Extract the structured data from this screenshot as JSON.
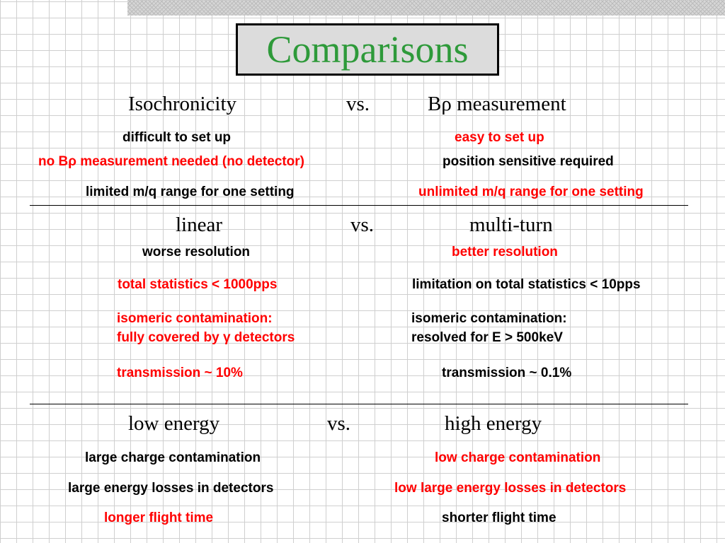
{
  "title": "Comparisons",
  "sections": [
    {
      "left_heading": "Isochronicity",
      "vs": "vs.",
      "right_heading": "Bρ measurement",
      "left": [
        "difficult to set up",
        "no Bρ measurement needed (no detector)",
        "limited m/q range for one setting"
      ],
      "right": [
        "easy to set up",
        "position sensitive required",
        "unlimited m/q range for one setting"
      ]
    },
    {
      "left_heading": "linear",
      "vs": "vs.",
      "right_heading": "multi-turn",
      "left": [
        "worse resolution",
        "total statistics < 1000pps",
        "isomeric contamination:",
        "fully covered by γ detectors",
        "transmission ~ 10%"
      ],
      "right": [
        "better resolution",
        "limitation on total statistics < 10pps",
        "isomeric contamination:",
        "resolved for E > 500keV",
        "transmission ~ 0.1%"
      ]
    },
    {
      "left_heading": "low energy",
      "vs": "vs.",
      "right_heading": "high energy",
      "left": [
        "large charge contamination",
        "large energy losses in detectors",
        "longer flight time"
      ],
      "right": [
        "low charge contamination",
        "low large energy losses in detectors",
        "shorter flight time"
      ]
    }
  ]
}
